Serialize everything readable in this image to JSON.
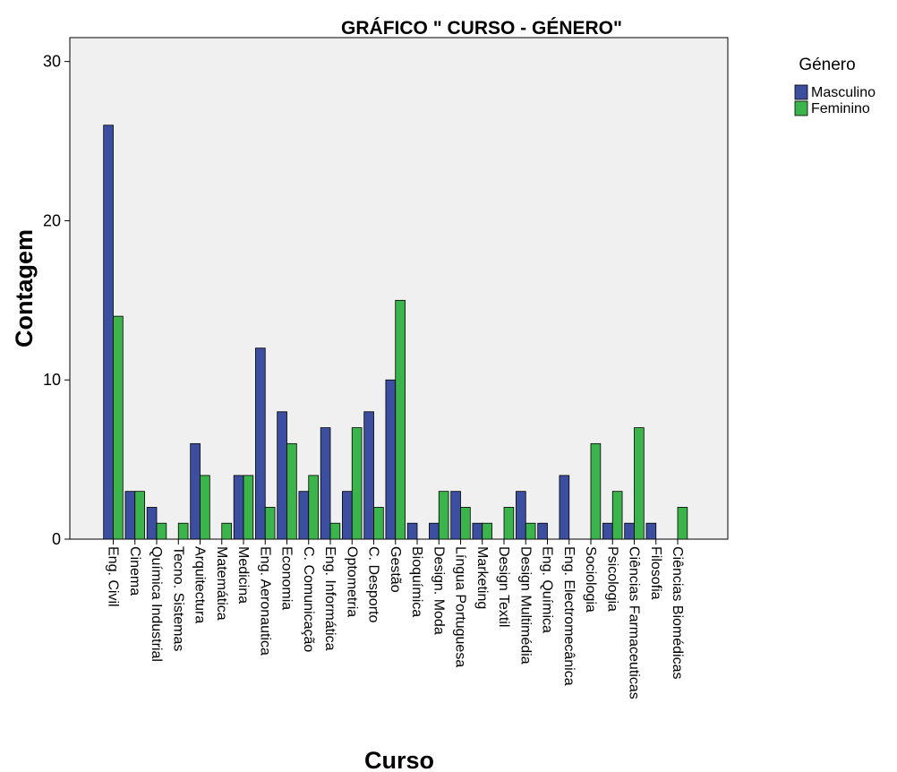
{
  "chart_data": {
    "type": "bar",
    "title": "GRÁFICO \" CURSO - GÉNERO\"",
    "xlabel": "Curso",
    "ylabel": "Contagem",
    "ylim": [
      0,
      31.5
    ],
    "yticks": [
      0,
      10,
      20,
      30
    ],
    "legend_title": "Género",
    "legend_position": "top-right",
    "grid": false,
    "plot_background": "#f0f0f0",
    "categories": [
      "Eng. Civil",
      "Cinema",
      "Química Industrial",
      "Tecno. Sistemas",
      "Arquitectura",
      "Matemática",
      "Medicina",
      "Eng. Aeronautica",
      "Economia",
      "C. Comunicação",
      "Eng. Informática",
      "Optometria",
      "C. Desporto",
      "Gestão",
      "Bioquímica",
      "Design. Moda",
      "Língua Portuguesa",
      "Marketing",
      "Design Textil",
      "Design Multimédia",
      "Eng. Química",
      "Eng. Electromecânica",
      "Sociologia",
      "Psicologia",
      "Ciências Farmaceuticas",
      "Filosofia",
      "Ciências Biomédicas"
    ],
    "series": [
      {
        "name": "Masculino",
        "color": "#3c4ea0",
        "values": [
          26,
          3,
          2,
          0,
          6,
          0,
          4,
          12,
          8,
          3,
          7,
          3,
          8,
          10,
          1,
          1,
          3,
          1,
          0,
          3,
          1,
          4,
          0,
          1,
          1,
          1,
          0
        ]
      },
      {
        "name": "Feminino",
        "color": "#3bb44b",
        "values": [
          14,
          3,
          1,
          1,
          4,
          1,
          4,
          2,
          6,
          4,
          1,
          7,
          2,
          15,
          0,
          3,
          2,
          1,
          2,
          1,
          0,
          0,
          6,
          3,
          7,
          0,
          2
        ]
      }
    ]
  }
}
